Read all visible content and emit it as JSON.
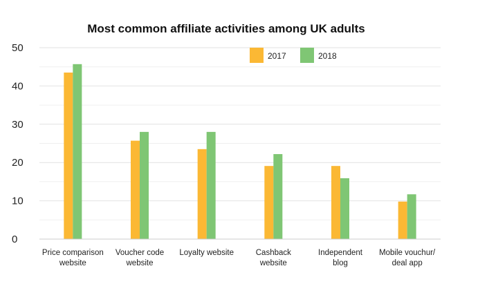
{
  "chart_data": {
    "type": "bar",
    "title": "Most common affiliate activities among UK adults",
    "xlabel": "",
    "ylabel": "",
    "ylim": [
      0,
      50
    ],
    "yticks": [
      0,
      10,
      20,
      30,
      40,
      50
    ],
    "grid": true,
    "legend_position": "top-right",
    "categories": [
      [
        "Price comparison",
        "website"
      ],
      [
        "Voucher code",
        "website"
      ],
      [
        "Loyalty website"
      ],
      [
        "Cashback",
        "website"
      ],
      [
        "Independent",
        "blog"
      ],
      [
        "Mobile vouchur/",
        "deal app"
      ]
    ],
    "series": [
      {
        "name": "2017",
        "color": "#FBB834",
        "values": [
          43.5,
          25.7,
          23.5,
          19.1,
          19.1,
          9.8
        ]
      },
      {
        "name": "2018",
        "color": "#7FC674",
        "values": [
          45.7,
          28.0,
          28.0,
          22.2,
          15.9,
          11.7
        ]
      }
    ]
  }
}
